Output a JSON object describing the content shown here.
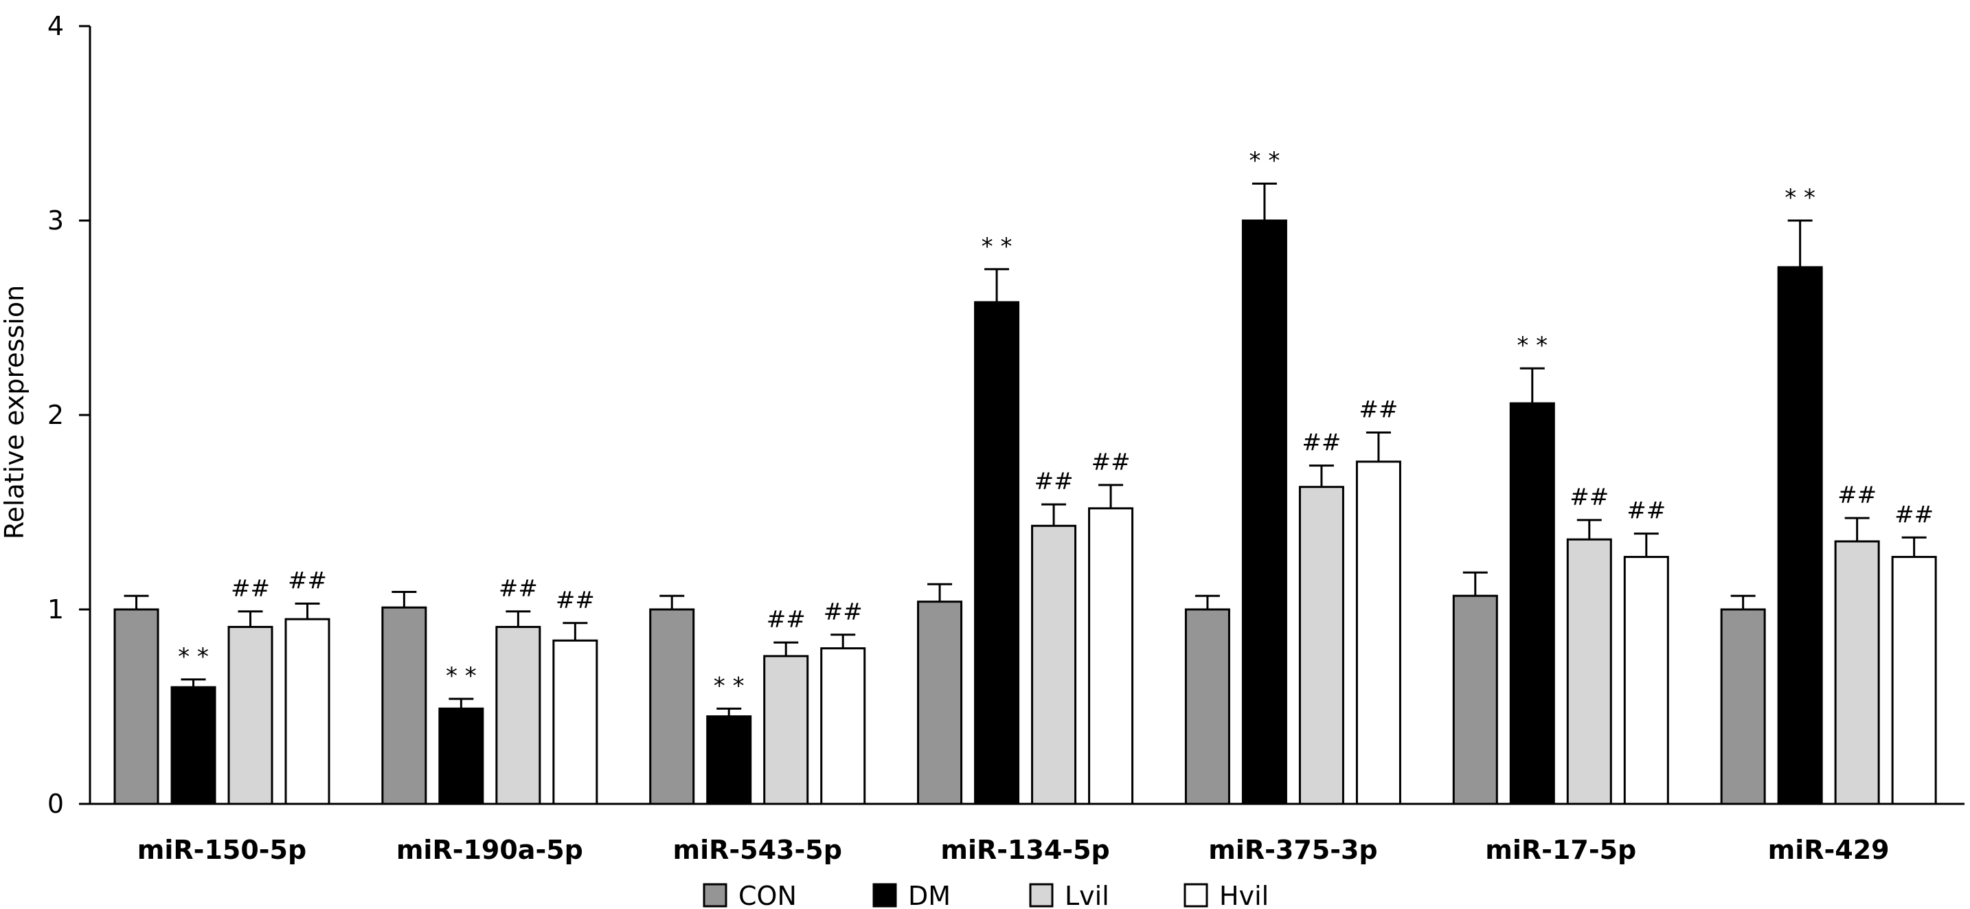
{
  "chart_data": {
    "type": "bar",
    "title": "",
    "xlabel": "",
    "ylabel": "Relative expression",
    "ylim": [
      0,
      4
    ],
    "yticks": [
      "0",
      "1",
      "2",
      "3",
      "4"
    ],
    "grid": false,
    "legend_position": "bottom",
    "categories": [
      "miR-150-5p",
      "miR-190a-5p",
      "miR-543-5p",
      "miR-134-5p",
      "miR-375-3p",
      "miR-17-5p",
      "miR-429"
    ],
    "series": [
      {
        "name": "CON",
        "color": "#959595",
        "values": [
          1.0,
          1.01,
          1.0,
          1.04,
          1.0,
          1.07,
          1.0
        ],
        "errors": [
          0.07,
          0.08,
          0.07,
          0.09,
          0.07,
          0.12,
          0.07
        ],
        "annotations": [
          "",
          "",
          "",
          "",
          "",
          "",
          ""
        ]
      },
      {
        "name": "DM",
        "color": "#000000",
        "values": [
          0.6,
          0.49,
          0.45,
          2.58,
          3.0,
          2.06,
          2.76
        ],
        "errors": [
          0.04,
          0.05,
          0.04,
          0.17,
          0.19,
          0.18,
          0.24
        ],
        "annotations": [
          "* *",
          "* *",
          "* *",
          "* *",
          "* *",
          "* *",
          "* *"
        ]
      },
      {
        "name": "Lvil",
        "color": "#d6d6d6",
        "values": [
          0.91,
          0.91,
          0.76,
          1.43,
          1.63,
          1.36,
          1.35
        ],
        "errors": [
          0.08,
          0.08,
          0.07,
          0.11,
          0.11,
          0.1,
          0.12
        ],
        "annotations": [
          "##",
          "##",
          "##",
          "##",
          "##",
          "##",
          "##"
        ]
      },
      {
        "name": "Hvil",
        "color": "#ffffff",
        "values": [
          0.95,
          0.84,
          0.8,
          1.52,
          1.76,
          1.27,
          1.27
        ],
        "errors": [
          0.08,
          0.09,
          0.07,
          0.12,
          0.15,
          0.12,
          0.1
        ],
        "annotations": [
          "##",
          "##",
          "##",
          "##",
          "##",
          "##",
          "##"
        ]
      }
    ]
  }
}
